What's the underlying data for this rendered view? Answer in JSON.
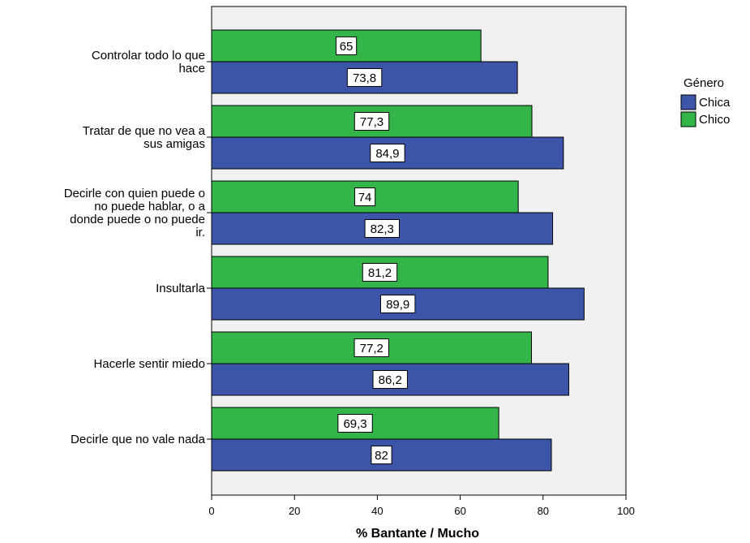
{
  "chart_data": {
    "type": "bar",
    "orientation": "horizontal",
    "title": "",
    "xlabel": "% Bantante / Mucho",
    "ylabel": "",
    "xlim": [
      0,
      100
    ],
    "x_ticks": [
      "0",
      "20",
      "40",
      "60",
      "80",
      "100"
    ],
    "grid": false,
    "legend_position": "right",
    "legend_title": "Género",
    "categories": [
      [
        "Controlar todo lo que",
        "hace"
      ],
      [
        "Tratar de que no vea a",
        "sus amigas"
      ],
      [
        "Decirle con quien puede o",
        "no puede hablar, o a",
        "donde puede o no puede",
        "ir."
      ],
      [
        "Insultarla"
      ],
      [
        "Hacerle sentir miedo"
      ],
      [
        "Decirle que no vale nada"
      ]
    ],
    "series": [
      {
        "name": "Chica",
        "color": "#3d55a8",
        "values": [
          73.8,
          84.9,
          82.3,
          89.9,
          86.2,
          82
        ],
        "labels": [
          "73,8",
          "84,9",
          "82,3",
          "89,9",
          "86,2",
          "82"
        ]
      },
      {
        "name": "Chico",
        "color": "#33b54a",
        "values": [
          65,
          77.3,
          74,
          81.2,
          77.2,
          69.3
        ],
        "labels": [
          "65",
          "77,3",
          "74",
          "81,2",
          "77,2",
          "69,3"
        ]
      }
    ],
    "plot_background": "#f0f0f0"
  }
}
